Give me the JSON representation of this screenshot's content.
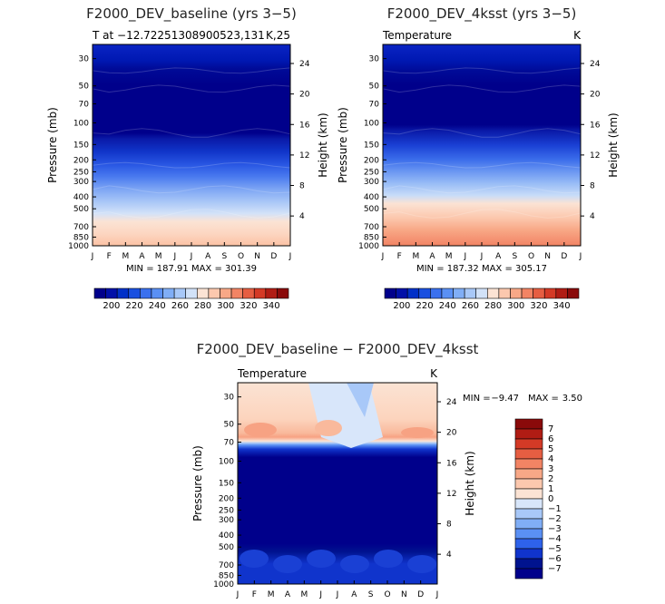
{
  "chart_data": [
    {
      "type": "contour",
      "title": "F2000_DEV_baseline (yrs 3−5)",
      "left_subtitle": "T at −12.72251308900523,131",
      "right_subtitle": "K,25",
      "xlabel": "",
      "ylabel": "Pressure (mb)",
      "y2label": "Height (km)",
      "months": [
        "J",
        "F",
        "M",
        "A",
        "M",
        "J",
        "J",
        "A",
        "S",
        "O",
        "N",
        "D",
        "J"
      ],
      "pressure_ticks": [
        30,
        50,
        70,
        100,
        150,
        200,
        250,
        300,
        400,
        500,
        700,
        850,
        1000
      ],
      "pressure_tick_labels": [
        "30",
        "50",
        "70",
        "100",
        "150",
        "200",
        "250",
        "300",
        "400",
        "500",
        "700",
        "850",
        "1000"
      ],
      "height_ticks_km": [
        4,
        8,
        12,
        16,
        20,
        24
      ],
      "height_tick_labels": [
        "4",
        "8",
        "12",
        "16",
        "20",
        "24"
      ],
      "ylim": [
        1000,
        23
      ],
      "stats": "MIN = 187.91  MAX = 301.39",
      "min": 187.91,
      "max": 301.39,
      "colorbar_labels": [
        "200",
        "220",
        "240",
        "260",
        "280",
        "300",
        "320",
        "340"
      ],
      "colorbar_levels": [
        190,
        200,
        210,
        220,
        230,
        240,
        250,
        260,
        270,
        280,
        290,
        300,
        310,
        320,
        330,
        340,
        350
      ]
    },
    {
      "type": "contour",
      "title": "F2000_DEV_4ksst (yrs 3−5)",
      "left_subtitle": "Temperature",
      "right_subtitle": "K",
      "xlabel": "",
      "ylabel": "Pressure (mb)",
      "y2label": "Height (km)",
      "months": [
        "J",
        "F",
        "M",
        "A",
        "M",
        "J",
        "J",
        "A",
        "S",
        "O",
        "N",
        "D",
        "J"
      ],
      "pressure_ticks": [
        30,
        50,
        70,
        100,
        150,
        200,
        250,
        300,
        400,
        500,
        700,
        850,
        1000
      ],
      "pressure_tick_labels": [
        "30",
        "50",
        "70",
        "100",
        "150",
        "200",
        "250",
        "300",
        "400",
        "500",
        "700",
        "850",
        "1000"
      ],
      "height_ticks_km": [
        4,
        8,
        12,
        16,
        20,
        24
      ],
      "height_tick_labels": [
        "4",
        "8",
        "12",
        "16",
        "20",
        "24"
      ],
      "ylim": [
        1000,
        23
      ],
      "stats": "MIN = 187.32  MAX = 305.17",
      "min": 187.32,
      "max": 305.17,
      "colorbar_labels": [
        "200",
        "220",
        "240",
        "260",
        "280",
        "300",
        "320",
        "340"
      ],
      "colorbar_levels": [
        190,
        200,
        210,
        220,
        230,
        240,
        250,
        260,
        270,
        280,
        290,
        300,
        310,
        320,
        330,
        340,
        350
      ]
    },
    {
      "type": "contour",
      "title": "F2000_DEV_baseline − F2000_DEV_4ksst",
      "left_subtitle": "Temperature",
      "right_subtitle": "K",
      "xlabel": "",
      "ylabel": "Pressure (mb)",
      "y2label": "Height (km)",
      "months": [
        "J",
        "F",
        "M",
        "A",
        "M",
        "J",
        "J",
        "A",
        "S",
        "O",
        "N",
        "D",
        "J"
      ],
      "pressure_ticks": [
        30,
        50,
        70,
        100,
        150,
        200,
        250,
        300,
        400,
        500,
        700,
        850,
        1000
      ],
      "pressure_tick_labels": [
        "30",
        "50",
        "70",
        "100",
        "150",
        "200",
        "250",
        "300",
        "400",
        "500",
        "700",
        "850",
        "1000"
      ],
      "height_ticks_km": [
        4,
        8,
        12,
        16,
        20,
        24
      ],
      "height_tick_labels": [
        "4",
        "8",
        "12",
        "16",
        "20",
        "24"
      ],
      "ylim": [
        1000,
        23
      ],
      "stats_min_label": "MIN =",
      "stats_min": "−9.47",
      "stats_max_label": "MAX =",
      "stats_max": "3.50",
      "min": -9.47,
      "max": 3.5,
      "colorbar_labels": [
        "7",
        "6",
        "5",
        "4",
        "3",
        "2",
        "1",
        "0",
        "−1",
        "−2",
        "−3",
        "−4",
        "−5",
        "−6",
        "−7"
      ],
      "colorbar_levels": [
        7,
        6,
        5,
        4,
        3,
        2,
        1,
        0,
        -1,
        -2,
        -3,
        -4,
        -5,
        -6,
        -7
      ]
    }
  ],
  "colors": {
    "temp_palette": [
      "#00008b",
      "#0010a8",
      "#0030c8",
      "#1a50e0",
      "#3a70ee",
      "#5a90f4",
      "#80aef6",
      "#a8c8f8",
      "#d2e2f8",
      "#fbe3d4",
      "#fcc8ae",
      "#f8a887",
      "#f28464",
      "#e65e42",
      "#d43a26",
      "#b01c14",
      "#8a0a0a"
    ],
    "diff_palette": [
      "#8a0a0a",
      "#b01c14",
      "#d43a26",
      "#e65e42",
      "#f28464",
      "#f8a887",
      "#fcc8ae",
      "#fbe3d4",
      "#d8e6fa",
      "#a8c8f8",
      "#80aef6",
      "#5a90f4",
      "#2e62ea",
      "#1034cc",
      "#00138f",
      "#00008b"
    ]
  }
}
